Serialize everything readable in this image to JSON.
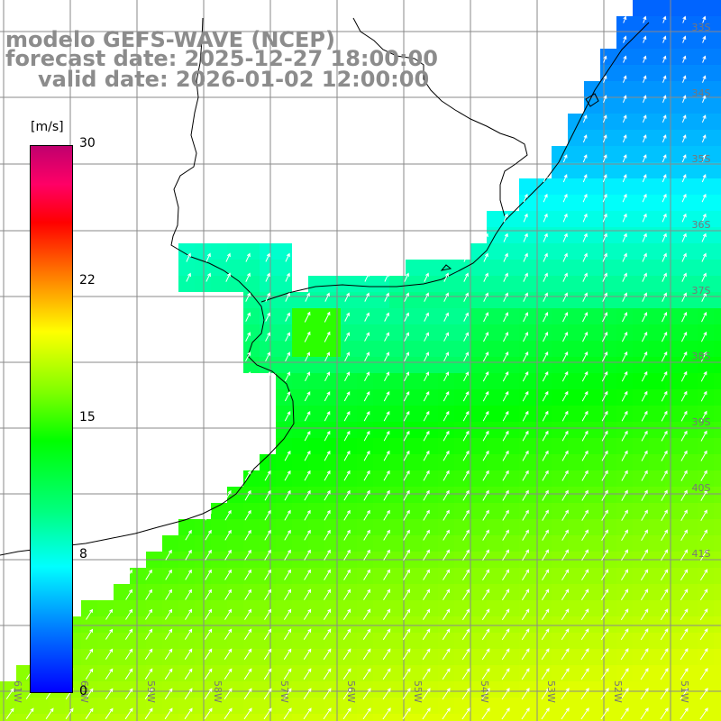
{
  "title": {
    "model": "modelo GEFS-WAVE (NCEP)",
    "forecast": "forecast date: 2025-12-27 18:00:00",
    "valid": "valid date: 2026-01-02 12:00:00"
  },
  "colorbar": {
    "unit": "[m/s]",
    "ticks": [
      "30",
      "22",
      "15",
      "8",
      "0"
    ],
    "range": [
      0,
      30
    ],
    "colors": [
      "#0000ff",
      "#00ffff",
      "#00ff00",
      "#ffff00",
      "#ff0000",
      "#c0006e"
    ]
  },
  "axes": {
    "lat_labels": [
      "33S",
      "34S",
      "35S",
      "36S",
      "37S",
      "38S",
      "39S",
      "40S",
      "41S"
    ],
    "lon_labels": [
      "61W",
      "60W",
      "59W",
      "58W",
      "57W",
      "56W",
      "55W",
      "54W",
      "53W",
      "52W",
      "51W"
    ]
  },
  "map": {
    "field": "wind speed",
    "grid": true,
    "vectors": "white arrows pointing mostly north-east"
  }
}
